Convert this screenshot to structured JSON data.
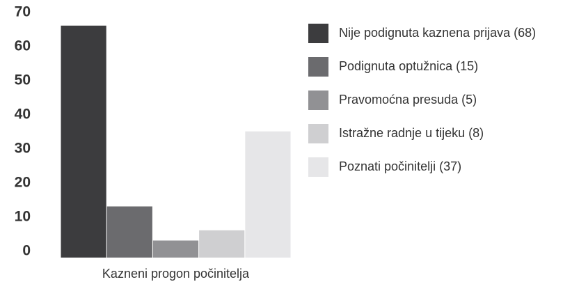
{
  "chart_data": {
    "type": "bar",
    "categories": [
      "Kazneni progon počinitelja"
    ],
    "series": [
      {
        "name": "Nije podignuta kaznena prijava (68)",
        "color": "#3c3c3e",
        "values": [
          68
        ]
      },
      {
        "name": "Podignuta optužnica (15)",
        "color": "#6b6b6e",
        "values": [
          15
        ]
      },
      {
        "name": "Pravomoćna presuda (5)",
        "color": "#919194",
        "values": [
          5
        ]
      },
      {
        "name": "Istražne radnje u tijeku (8)",
        "color": "#cfcfd1",
        "values": [
          8
        ]
      },
      {
        "name": "Poznati počinitelji (37)",
        "color": "#e6e6e8",
        "values": [
          37
        ]
      }
    ],
    "ylim": [
      0,
      70
    ],
    "yticks": [
      0,
      10,
      20,
      30,
      40,
      50,
      60,
      70
    ],
    "grid": false
  }
}
